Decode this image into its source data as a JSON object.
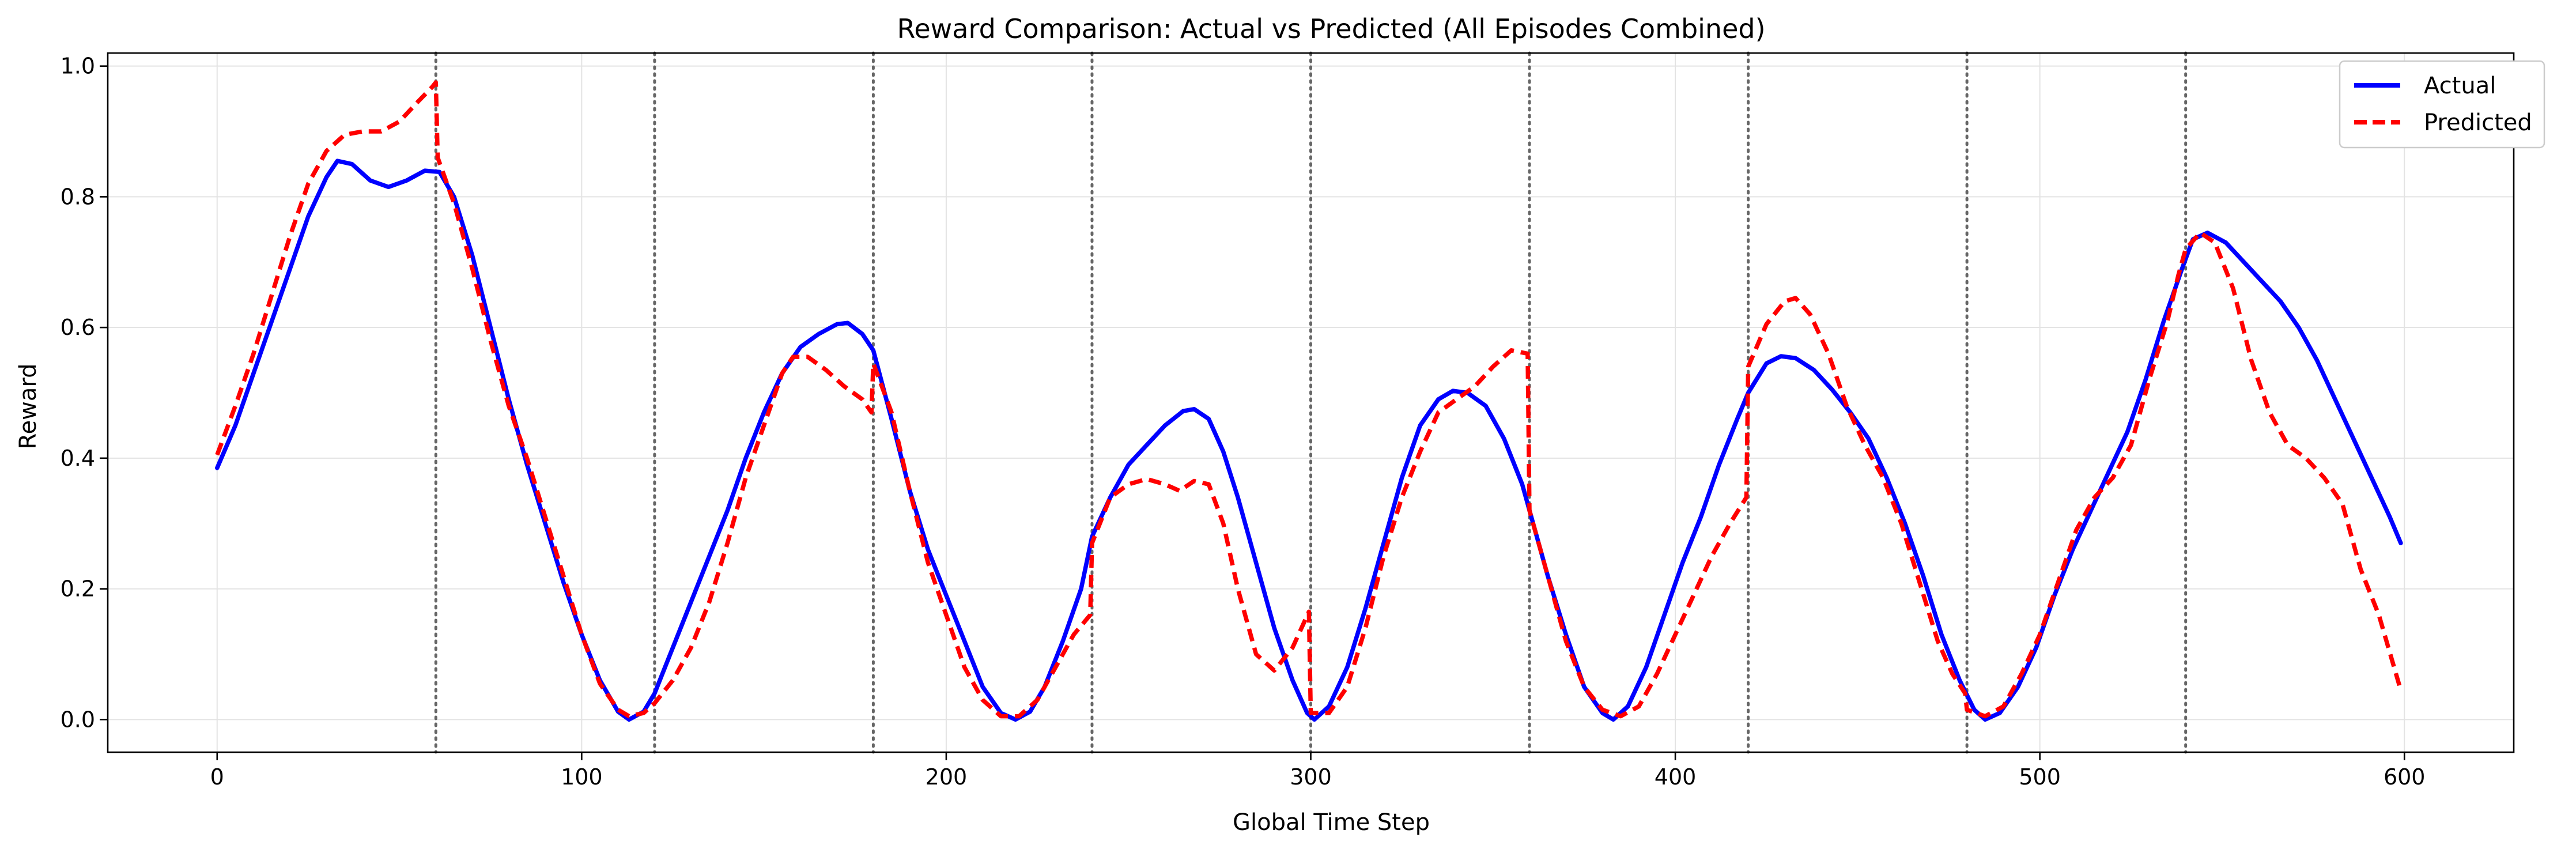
{
  "chart_data": {
    "type": "line",
    "title": "Reward Comparison: Actual vs Predicted (All Episodes Combined)",
    "xlabel": "Global Time Step",
    "ylabel": "Reward",
    "xlim": [
      -30,
      630
    ],
    "ylim": [
      -0.05,
      1.02
    ],
    "x_ticks": [
      0,
      100,
      200,
      300,
      400,
      500,
      600
    ],
    "y_ticks": [
      0.0,
      0.2,
      0.4,
      0.6,
      0.8,
      1.0
    ],
    "x_tick_labels": [
      "0",
      "100",
      "200",
      "300",
      "400",
      "500",
      "600"
    ],
    "y_tick_labels": [
      "0.0",
      "0.2",
      "0.4",
      "0.6",
      "0.8",
      "1.0"
    ],
    "grid": true,
    "legend_position": "top-right",
    "episode_boundaries": [
      60,
      120,
      180,
      240,
      300,
      360,
      420,
      480,
      540
    ],
    "series": [
      {
        "name": "Actual",
        "color": "#0000ff",
        "style": "solid",
        "points": [
          [
            0,
            0.385
          ],
          [
            5,
            0.45
          ],
          [
            10,
            0.53
          ],
          [
            15,
            0.61
          ],
          [
            20,
            0.69
          ],
          [
            25,
            0.77
          ],
          [
            30,
            0.83
          ],
          [
            33,
            0.855
          ],
          [
            37,
            0.85
          ],
          [
            42,
            0.825
          ],
          [
            47,
            0.815
          ],
          [
            52,
            0.825
          ],
          [
            57,
            0.84
          ],
          [
            61,
            0.838
          ],
          [
            65,
            0.8
          ],
          [
            70,
            0.71
          ],
          [
            75,
            0.6
          ],
          [
            80,
            0.49
          ],
          [
            85,
            0.39
          ],
          [
            90,
            0.3
          ],
          [
            95,
            0.21
          ],
          [
            100,
            0.13
          ],
          [
            105,
            0.06
          ],
          [
            110,
            0.012
          ],
          [
            113,
            0.0
          ],
          [
            117,
            0.012
          ],
          [
            120,
            0.04
          ],
          [
            125,
            0.11
          ],
          [
            130,
            0.18
          ],
          [
            135,
            0.25
          ],
          [
            140,
            0.32
          ],
          [
            145,
            0.4
          ],
          [
            150,
            0.47
          ],
          [
            155,
            0.53
          ],
          [
            160,
            0.57
          ],
          [
            165,
            0.59
          ],
          [
            170,
            0.605
          ],
          [
            173,
            0.607
          ],
          [
            177,
            0.59
          ],
          [
            180,
            0.565
          ],
          [
            185,
            0.46
          ],
          [
            190,
            0.35
          ],
          [
            195,
            0.26
          ],
          [
            200,
            0.19
          ],
          [
            205,
            0.12
          ],
          [
            210,
            0.05
          ],
          [
            215,
            0.01
          ],
          [
            219,
            0.0
          ],
          [
            223,
            0.012
          ],
          [
            227,
            0.05
          ],
          [
            232,
            0.12
          ],
          [
            237,
            0.2
          ],
          [
            240,
            0.28
          ],
          [
            245,
            0.34
          ],
          [
            250,
            0.39
          ],
          [
            255,
            0.42
          ],
          [
            260,
            0.45
          ],
          [
            265,
            0.472
          ],
          [
            268,
            0.475
          ],
          [
            272,
            0.46
          ],
          [
            276,
            0.41
          ],
          [
            280,
            0.34
          ],
          [
            285,
            0.24
          ],
          [
            290,
            0.14
          ],
          [
            295,
            0.06
          ],
          [
            299,
            0.01
          ],
          [
            301,
            0.0
          ],
          [
            305,
            0.02
          ],
          [
            310,
            0.08
          ],
          [
            315,
            0.17
          ],
          [
            320,
            0.27
          ],
          [
            325,
            0.37
          ],
          [
            330,
            0.45
          ],
          [
            335,
            0.49
          ],
          [
            339,
            0.503
          ],
          [
            343,
            0.5
          ],
          [
            348,
            0.48
          ],
          [
            353,
            0.43
          ],
          [
            358,
            0.36
          ],
          [
            361,
            0.3
          ],
          [
            365,
            0.22
          ],
          [
            370,
            0.13
          ],
          [
            375,
            0.05
          ],
          [
            380,
            0.01
          ],
          [
            383,
            0.0
          ],
          [
            387,
            0.02
          ],
          [
            392,
            0.08
          ],
          [
            397,
            0.16
          ],
          [
            402,
            0.24
          ],
          [
            407,
            0.31
          ],
          [
            412,
            0.39
          ],
          [
            417,
            0.46
          ],
          [
            420,
            0.5
          ],
          [
            425,
            0.545
          ],
          [
            429,
            0.556
          ],
          [
            433,
            0.553
          ],
          [
            438,
            0.535
          ],
          [
            443,
            0.505
          ],
          [
            448,
            0.47
          ],
          [
            453,
            0.43
          ],
          [
            458,
            0.37
          ],
          [
            463,
            0.3
          ],
          [
            468,
            0.22
          ],
          [
            473,
            0.13
          ],
          [
            478,
            0.06
          ],
          [
            482,
            0.015
          ],
          [
            485,
            0.0
          ],
          [
            489,
            0.01
          ],
          [
            494,
            0.05
          ],
          [
            499,
            0.11
          ],
          [
            504,
            0.19
          ],
          [
            509,
            0.26
          ],
          [
            514,
            0.32
          ],
          [
            519,
            0.38
          ],
          [
            524,
            0.44
          ],
          [
            529,
            0.52
          ],
          [
            534,
            0.61
          ],
          [
            539,
            0.69
          ],
          [
            542,
            0.735
          ],
          [
            546,
            0.745
          ],
          [
            551,
            0.73
          ],
          [
            556,
            0.7
          ],
          [
            561,
            0.67
          ],
          [
            566,
            0.64
          ],
          [
            571,
            0.6
          ],
          [
            576,
            0.55
          ],
          [
            581,
            0.49
          ],
          [
            586,
            0.43
          ],
          [
            591,
            0.37
          ],
          [
            596,
            0.31
          ],
          [
            599,
            0.27
          ]
        ]
      },
      {
        "name": "Predicted",
        "color": "#ff0000",
        "style": "dashed",
        "points": [
          [
            0,
            0.405
          ],
          [
            5,
            0.48
          ],
          [
            10,
            0.56
          ],
          [
            15,
            0.65
          ],
          [
            20,
            0.74
          ],
          [
            25,
            0.82
          ],
          [
            30,
            0.87
          ],
          [
            35,
            0.895
          ],
          [
            40,
            0.9
          ],
          [
            45,
            0.9
          ],
          [
            50,
            0.915
          ],
          [
            55,
            0.945
          ],
          [
            59,
            0.968
          ],
          [
            60,
            0.975
          ],
          [
            60.5,
            0.86
          ],
          [
            65,
            0.79
          ],
          [
            70,
            0.69
          ],
          [
            75,
            0.58
          ],
          [
            80,
            0.48
          ],
          [
            85,
            0.4
          ],
          [
            90,
            0.31
          ],
          [
            95,
            0.22
          ],
          [
            100,
            0.13
          ],
          [
            105,
            0.055
          ],
          [
            110,
            0.015
          ],
          [
            113,
            0.005
          ],
          [
            117,
            0.01
          ],
          [
            120,
            0.025
          ],
          [
            125,
            0.06
          ],
          [
            130,
            0.11
          ],
          [
            135,
            0.18
          ],
          [
            140,
            0.27
          ],
          [
            145,
            0.37
          ],
          [
            150,
            0.45
          ],
          [
            155,
            0.53
          ],
          [
            158,
            0.555
          ],
          [
            162,
            0.555
          ],
          [
            167,
            0.535
          ],
          [
            172,
            0.51
          ],
          [
            177,
            0.49
          ],
          [
            179.5,
            0.47
          ],
          [
            180,
            0.545
          ],
          [
            185,
            0.47
          ],
          [
            190,
            0.35
          ],
          [
            195,
            0.24
          ],
          [
            200,
            0.16
          ],
          [
            205,
            0.08
          ],
          [
            210,
            0.03
          ],
          [
            215,
            0.005
          ],
          [
            220,
            0.005
          ],
          [
            225,
            0.03
          ],
          [
            230,
            0.08
          ],
          [
            235,
            0.13
          ],
          [
            239.5,
            0.16
          ],
          [
            240,
            0.27
          ],
          [
            245,
            0.34
          ],
          [
            250,
            0.36
          ],
          [
            255,
            0.368
          ],
          [
            260,
            0.36
          ],
          [
            264,
            0.35
          ],
          [
            268,
            0.365
          ],
          [
            272,
            0.36
          ],
          [
            276,
            0.3
          ],
          [
            280,
            0.2
          ],
          [
            285,
            0.1
          ],
          [
            290,
            0.075
          ],
          [
            295,
            0.11
          ],
          [
            299.5,
            0.165
          ],
          [
            300,
            0.01
          ],
          [
            305,
            0.01
          ],
          [
            310,
            0.05
          ],
          [
            315,
            0.14
          ],
          [
            320,
            0.25
          ],
          [
            325,
            0.34
          ],
          [
            330,
            0.41
          ],
          [
            335,
            0.47
          ],
          [
            340,
            0.49
          ],
          [
            345,
            0.51
          ],
          [
            350,
            0.54
          ],
          [
            355,
            0.565
          ],
          [
            359.5,
            0.56
          ],
          [
            360,
            0.32
          ],
          [
            365,
            0.22
          ],
          [
            370,
            0.12
          ],
          [
            375,
            0.05
          ],
          [
            380,
            0.015
          ],
          [
            385,
            0.005
          ],
          [
            390,
            0.02
          ],
          [
            395,
            0.07
          ],
          [
            400,
            0.13
          ],
          [
            405,
            0.19
          ],
          [
            410,
            0.25
          ],
          [
            415,
            0.3
          ],
          [
            419.5,
            0.34
          ],
          [
            420,
            0.54
          ],
          [
            425,
            0.605
          ],
          [
            430,
            0.64
          ],
          [
            433,
            0.645
          ],
          [
            437,
            0.62
          ],
          [
            442,
            0.56
          ],
          [
            447,
            0.48
          ],
          [
            452,
            0.42
          ],
          [
            457,
            0.37
          ],
          [
            462,
            0.3
          ],
          [
            467,
            0.21
          ],
          [
            472,
            0.12
          ],
          [
            476,
            0.07
          ],
          [
            479.5,
            0.04
          ],
          [
            480,
            0.015
          ],
          [
            485,
            0.005
          ],
          [
            490,
            0.02
          ],
          [
            495,
            0.07
          ],
          [
            500,
            0.13
          ],
          [
            505,
            0.21
          ],
          [
            510,
            0.29
          ],
          [
            515,
            0.34
          ],
          [
            520,
            0.37
          ],
          [
            525,
            0.42
          ],
          [
            530,
            0.52
          ],
          [
            535,
            0.61
          ],
          [
            538,
            0.68
          ],
          [
            540,
            0.72
          ],
          [
            544,
            0.745
          ],
          [
            548,
            0.73
          ],
          [
            553,
            0.66
          ],
          [
            558,
            0.55
          ],
          [
            563,
            0.47
          ],
          [
            568,
            0.42
          ],
          [
            573,
            0.4
          ],
          [
            578,
            0.37
          ],
          [
            583,
            0.33
          ],
          [
            588,
            0.23
          ],
          [
            593,
            0.16
          ],
          [
            599,
            0.045
          ]
        ]
      }
    ]
  }
}
